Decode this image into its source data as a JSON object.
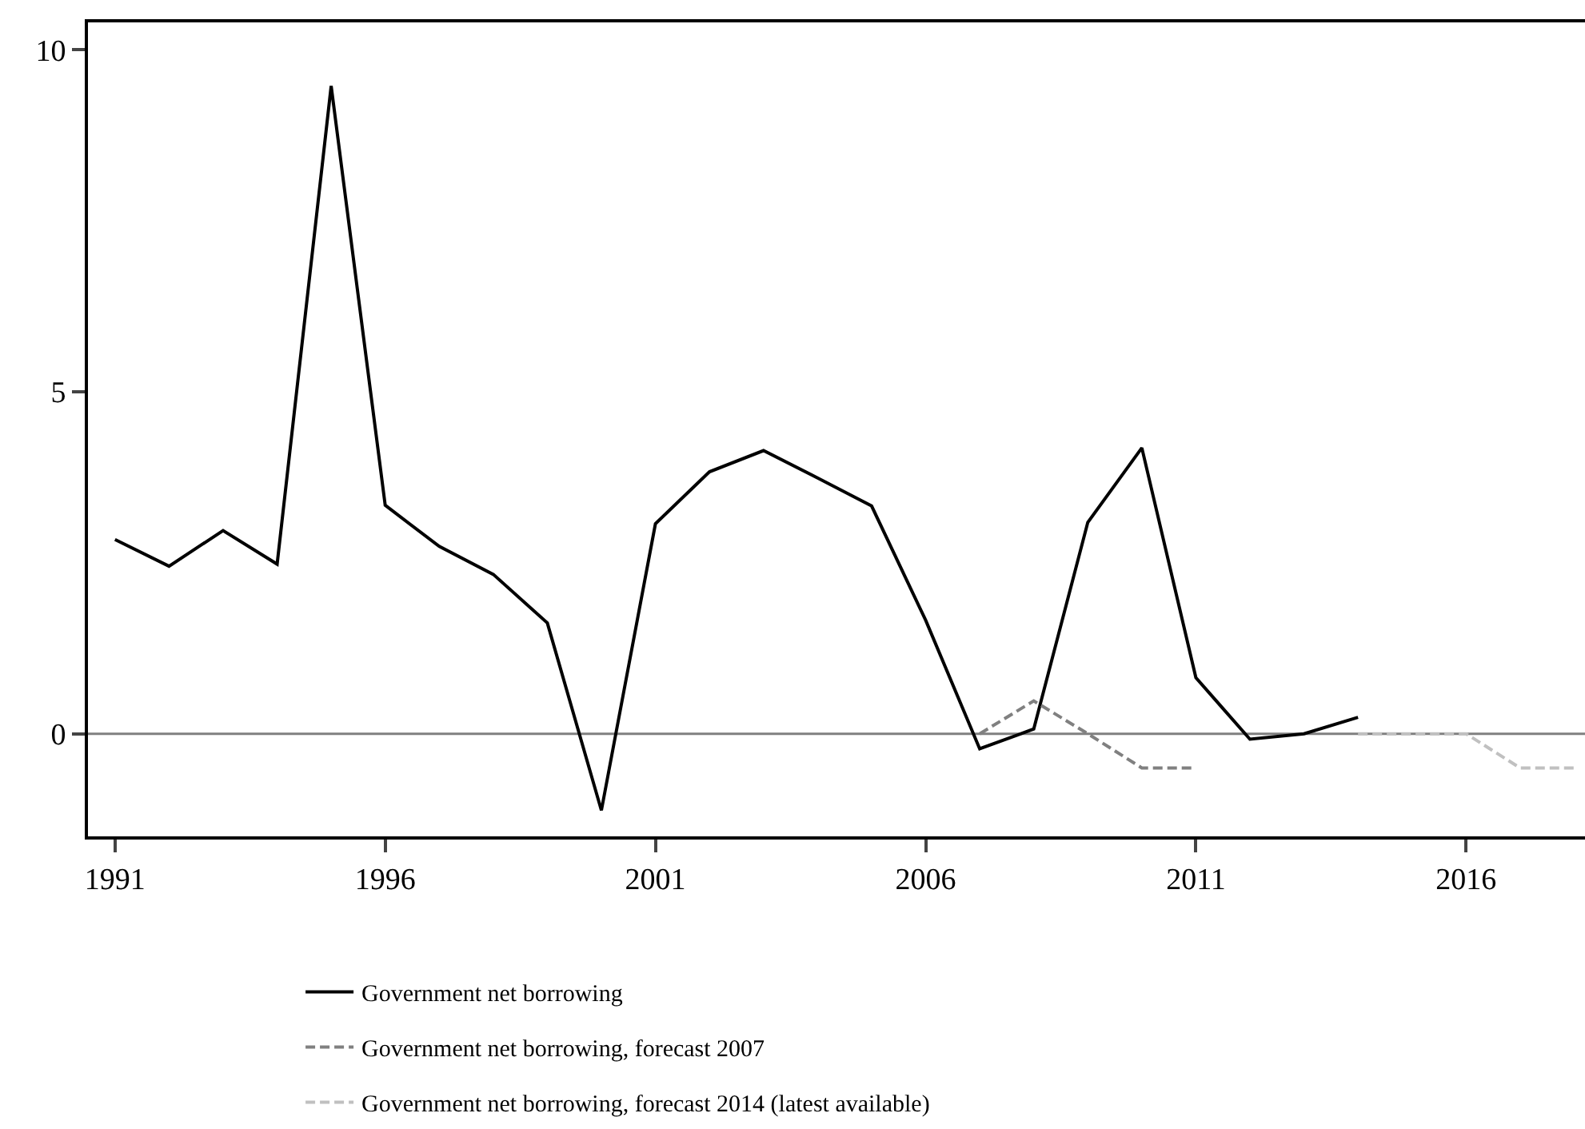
{
  "chart_data": {
    "type": "line",
    "x": [
      1991,
      1992,
      1993,
      1994,
      1995,
      1996,
      1997,
      1998,
      1999,
      2000,
      2001,
      2002,
      2003,
      2004,
      2005,
      2006,
      2007,
      2008,
      2009,
      2010,
      2011,
      2012,
      2013,
      2014
    ],
    "series": [
      {
        "name": "Government net borrowing",
        "color": "#000000",
        "line_style": "solid",
        "values": [
          2.84,
          2.45,
          2.97,
          2.48,
          9.47,
          3.34,
          2.74,
          2.33,
          1.62,
          -1.12,
          3.07,
          3.83,
          4.14,
          3.74,
          3.33,
          1.66,
          -0.22,
          0.07,
          3.09,
          4.18,
          0.82,
          -0.08,
          0,
          0.24
        ]
      },
      {
        "name": "Government net borrowing, forecast 2007",
        "color": "#808080",
        "line_style": "dashed",
        "x": [
          2007,
          2008,
          2009,
          2010,
          2011
        ],
        "values": [
          0,
          0.48,
          0,
          -0.5,
          -0.5
        ]
      },
      {
        "name": "Government net borrowing, forecast 2014 (latest available)",
        "color": "#c0c0c0",
        "line_style": "dashed",
        "x": [
          2014,
          2015,
          2016,
          2017,
          2018
        ],
        "values": [
          0,
          0,
          0,
          -0.5,
          -0.5
        ]
      }
    ],
    "xlim": [
      1990.5,
      2018.2
    ],
    "xticks": [
      1991,
      1996,
      2001,
      2006,
      2011,
      2016
    ],
    "ylim": [
      -1.5,
      10.4
    ],
    "yticks": [
      0,
      5,
      10
    ],
    "ref_lines": [
      {
        "axis": "y",
        "value": 0,
        "color": "#808080"
      }
    ],
    "grid": false,
    "legend": "bottom",
    "marker": "none"
  }
}
